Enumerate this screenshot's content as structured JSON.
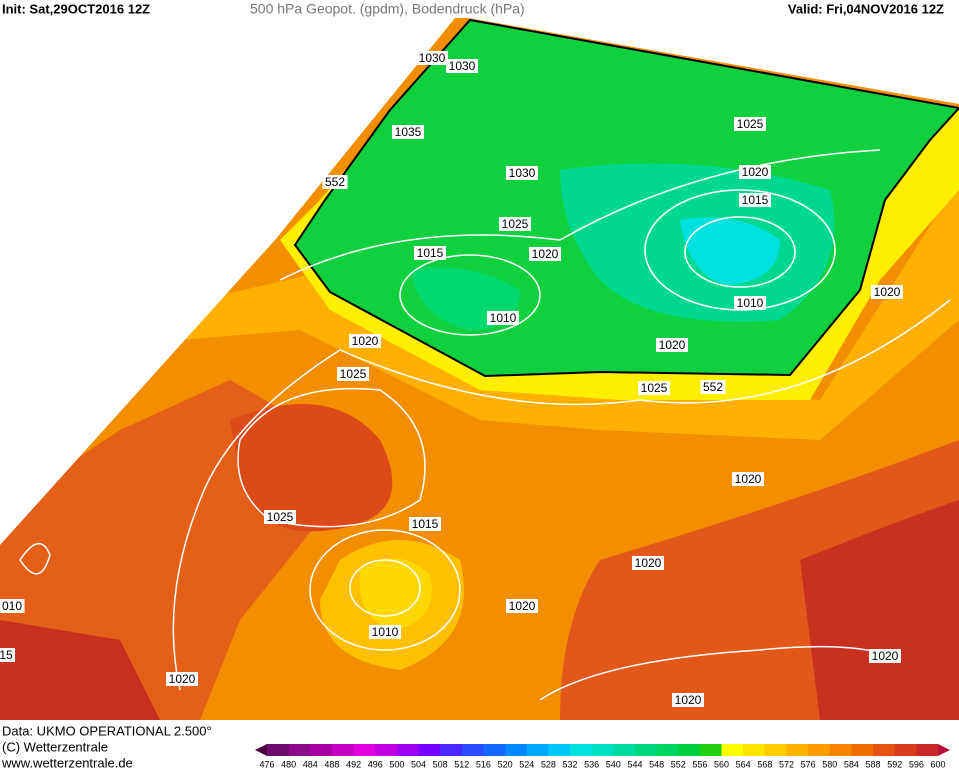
{
  "header": {
    "init": "Init: Sat,29OCT2016 12Z",
    "title": "500 hPa Geopot. (gpdm), Bodendruck (hPa)",
    "valid": "Valid: Fri,04NOV2016 12Z"
  },
  "map": {
    "labels": [
      "1030",
      "1030",
      "1035",
      "552",
      "1030",
      "1025",
      "1020",
      "1015",
      "1025",
      "1015",
      "1020",
      "1010",
      "1010",
      "1020",
      "1020",
      "1020",
      "1025",
      "1025",
      "552",
      "1020",
      "1025",
      "1015",
      "1020",
      "1020",
      "1010",
      "1020",
      "1020",
      "1020",
      "010",
      "15"
    ]
  },
  "footer": {
    "data": "Data: UKMO OPERATIONAL 2.500°",
    "copyright": "(C) Wetterzentrale",
    "url": "www.wetterzentrale.de"
  },
  "legend": {
    "labels": [
      476,
      480,
      484,
      488,
      492,
      496,
      500,
      504,
      508,
      512,
      516,
      520,
      524,
      528,
      532,
      536,
      540,
      544,
      548,
      552,
      556,
      560,
      564,
      568,
      572,
      576,
      580,
      584,
      588,
      592,
      596,
      600
    ],
    "colors": [
      "#4a0040",
      "#6e0a6e",
      "#8c0a8c",
      "#a800a8",
      "#c400c4",
      "#e000e0",
      "#c000e0",
      "#a000f0",
      "#7800ff",
      "#4a28ff",
      "#2a4cff",
      "#1468ff",
      "#0088ff",
      "#00a8ff",
      "#00c8f8",
      "#00e0e0",
      "#00e0c0",
      "#00dca0",
      "#00d880",
      "#00d460",
      "#00d040",
      "#20d010",
      "#ffff00",
      "#ffe400",
      "#ffcc00",
      "#ffb400",
      "#ff9c00",
      "#f88400",
      "#f06c00",
      "#e45410",
      "#d83c1c",
      "#c82828",
      "#b8103a"
    ]
  }
}
